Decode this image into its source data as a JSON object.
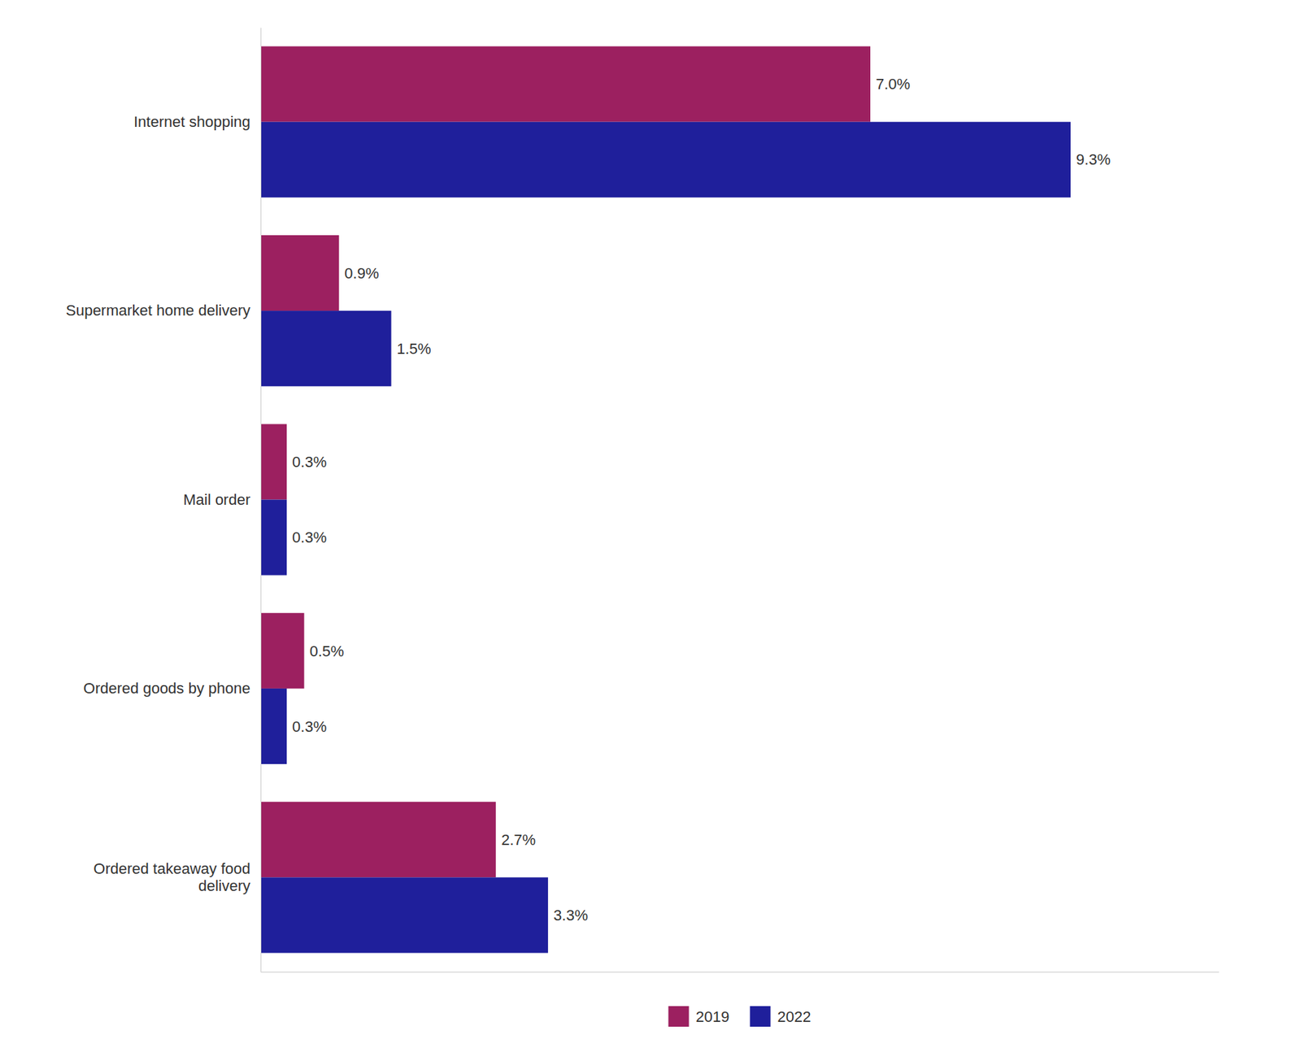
{
  "chart_data": {
    "type": "bar",
    "orientation": "horizontal",
    "categories": [
      "Internet shopping",
      "Supermarket home delivery",
      "Mail order",
      "Ordered goods by phone",
      "Ordered takeaway food\ndelivery"
    ],
    "series": [
      {
        "name": "2019",
        "color": "#9C2060",
        "values": [
          7.0,
          0.9,
          0.3,
          0.5,
          2.7
        ],
        "value_labels": [
          "7.0%",
          "0.9%",
          "0.3%",
          "0.5%",
          "2.7%"
        ]
      },
      {
        "name": "2022",
        "color": "#1F1F9B",
        "values": [
          9.3,
          1.5,
          0.3,
          0.3,
          3.3
        ],
        "value_labels": [
          "9.3%",
          "1.5%",
          "0.3%",
          "0.3%",
          "3.3%"
        ]
      }
    ],
    "xlim": [
      0,
      11
    ],
    "data_labels": true,
    "tick_labels": "y",
    "legend": "bottom",
    "grid": false
  }
}
